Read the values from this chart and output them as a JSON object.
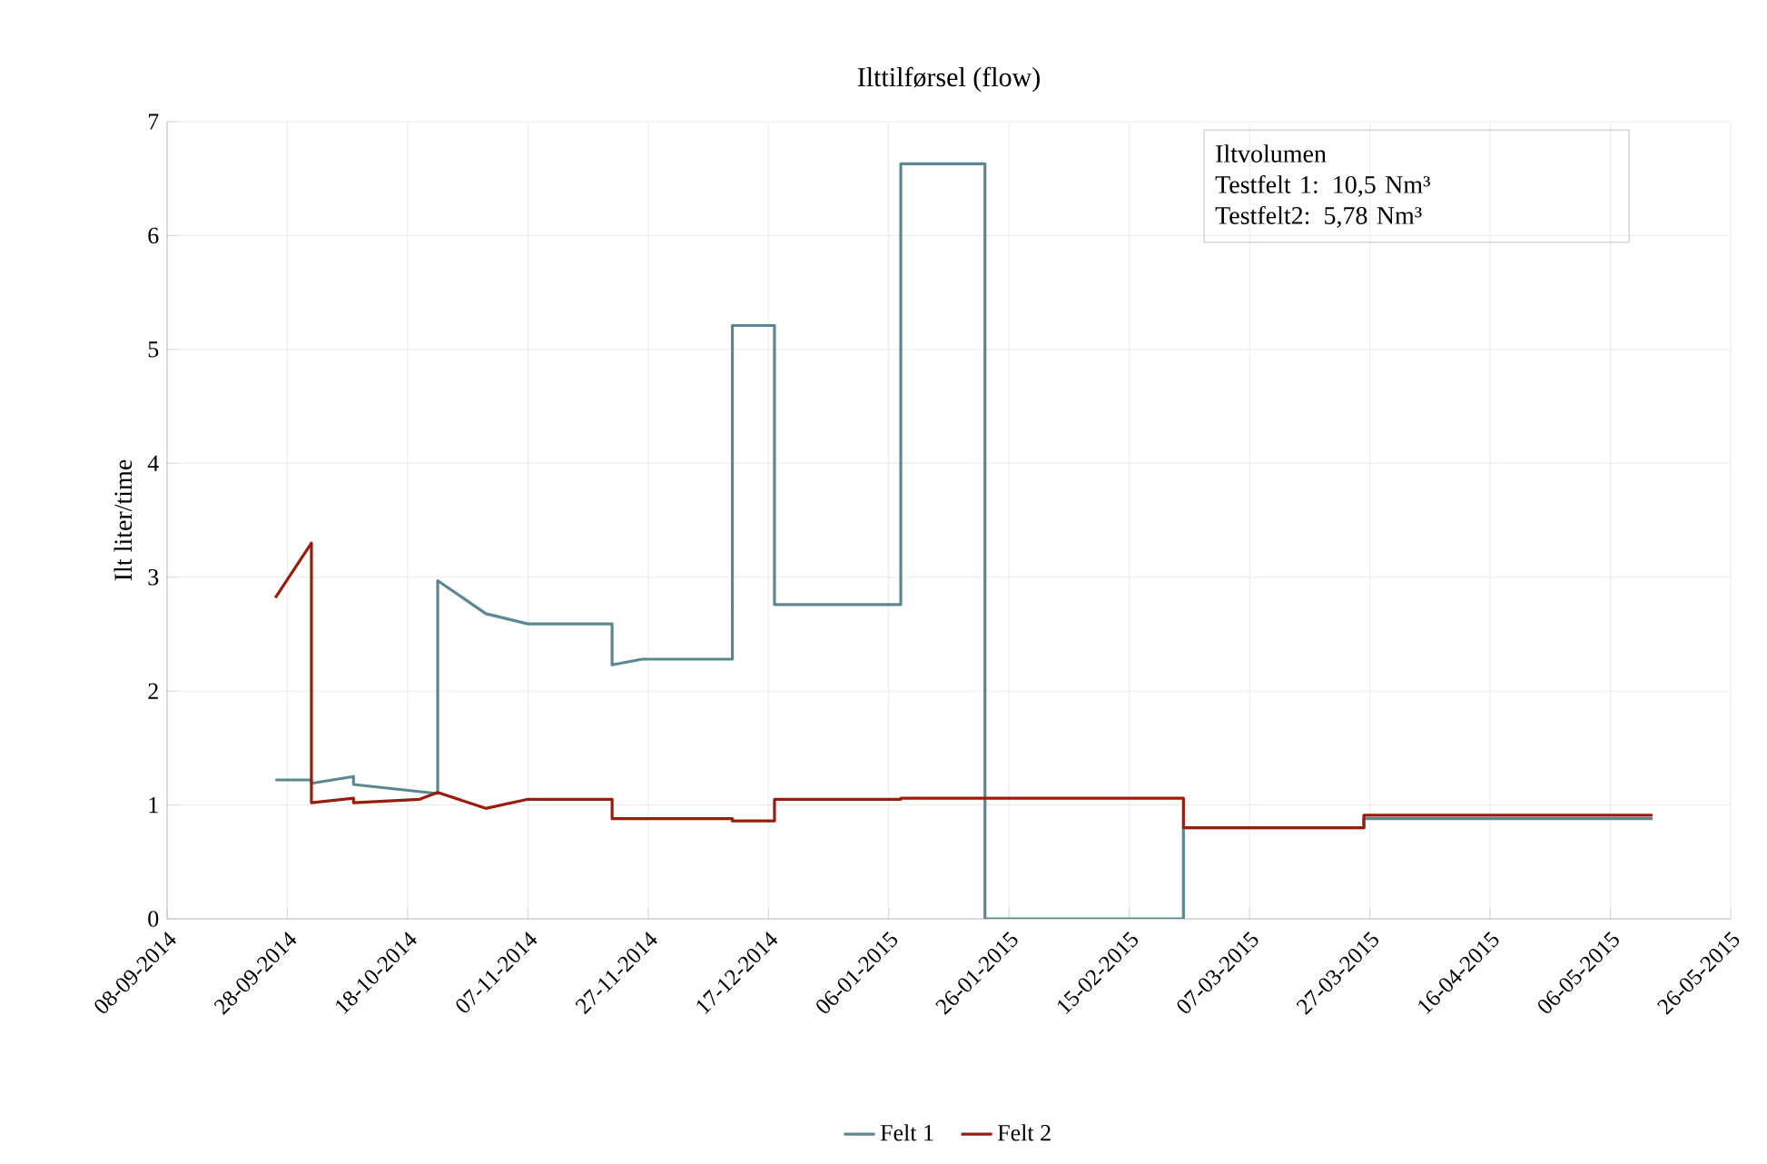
{
  "chart_data": {
    "type": "line",
    "title": "Ilttilførsel (flow)",
    "ylabel": "Ilt liter/time",
    "xlim": [
      "2014-09-08",
      "2015-05-26"
    ],
    "xticks": [
      {
        "value": "2014-09-08",
        "label": "08-09-2014"
      },
      {
        "value": "2014-09-28",
        "label": "28-09-2014"
      },
      {
        "value": "2014-10-18",
        "label": "18-10-2014"
      },
      {
        "value": "2014-11-07",
        "label": "07-11-2014"
      },
      {
        "value": "2014-11-27",
        "label": "27-11-2014"
      },
      {
        "value": "2014-12-17",
        "label": "17-12-2014"
      },
      {
        "value": "2015-01-06",
        "label": "06-01-2015"
      },
      {
        "value": "2015-01-26",
        "label": "26-01-2015"
      },
      {
        "value": "2015-02-15",
        "label": "15-02-2015"
      },
      {
        "value": "2015-03-07",
        "label": "07-03-2015"
      },
      {
        "value": "2015-03-27",
        "label": "27-03-2015"
      },
      {
        "value": "2015-04-16",
        "label": "16-04-2015"
      },
      {
        "value": "2015-05-06",
        "label": "06-05-2015"
      },
      {
        "value": "2015-05-26",
        "label": "26-05-2015"
      }
    ],
    "ylim": [
      0,
      7
    ],
    "yticks": [
      0,
      1,
      2,
      3,
      4,
      5,
      6,
      7
    ],
    "grid": true,
    "legend": "bottom",
    "annotations": [
      "Iltvolumen",
      "Testfelt 1:  10,5 Nm³",
      "Testfelt2:  5,78 Nm³"
    ],
    "series": [
      {
        "name": "Felt 1",
        "color": "#5b8790",
        "x": [
          "2014-09-26",
          "2014-10-02",
          "2014-10-02",
          "2014-10-09",
          "2014-10-09",
          "2014-10-23",
          "2014-10-23",
          "2014-10-31",
          "2014-11-07",
          "2014-11-21",
          "2014-11-21",
          "2014-11-26",
          "2014-12-11",
          "2014-12-11",
          "2014-12-18",
          "2014-12-18",
          "2015-01-08",
          "2015-01-08",
          "2015-01-22",
          "2015-01-22",
          "2015-02-24",
          "2015-02-24",
          "2015-03-26",
          "2015-03-26",
          "2015-05-13"
        ],
        "values": [
          1.22,
          1.22,
          1.19,
          1.25,
          1.18,
          1.1,
          2.97,
          2.68,
          2.59,
          2.59,
          2.23,
          2.28,
          2.28,
          5.21,
          5.21,
          2.76,
          2.76,
          6.63,
          6.63,
          0,
          0,
          0.8,
          0.8,
          0.88,
          0.88
        ]
      },
      {
        "name": "Felt 2",
        "color": "#9b1c0c",
        "x": [
          "2014-09-26",
          "2014-10-02",
          "2014-10-02",
          "2014-10-09",
          "2014-10-09",
          "2014-10-20",
          "2014-10-23",
          "2014-10-31",
          "2014-11-07",
          "2014-11-21",
          "2014-11-21",
          "2014-12-11",
          "2014-12-11",
          "2014-12-18",
          "2014-12-18",
          "2015-01-08",
          "2015-01-08",
          "2015-02-24",
          "2015-02-24",
          "2015-03-26",
          "2015-03-26",
          "2015-05-13"
        ],
        "values": [
          2.82,
          3.3,
          1.02,
          1.06,
          1.02,
          1.05,
          1.11,
          0.97,
          1.05,
          1.05,
          0.88,
          0.88,
          0.86,
          0.86,
          1.05,
          1.05,
          1.06,
          1.06,
          0.8,
          0.8,
          0.91,
          0.91
        ]
      }
    ]
  }
}
